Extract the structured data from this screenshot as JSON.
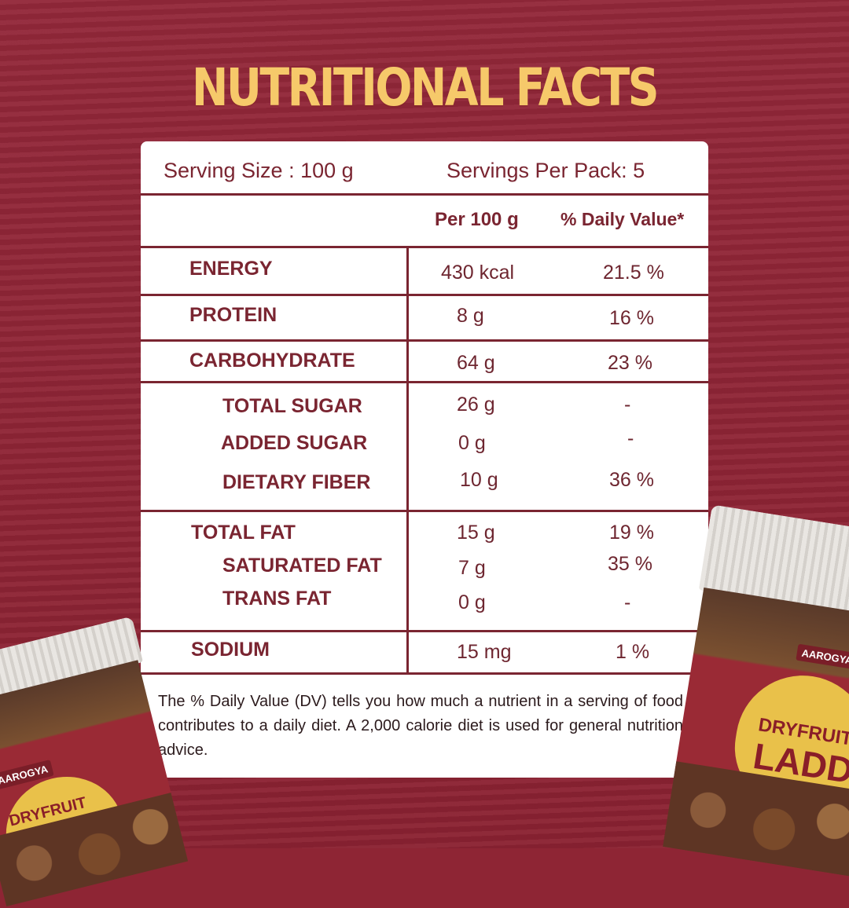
{
  "title": "NUTRITIONAL FACTS",
  "serving": {
    "size": "Serving Size : 100 g",
    "per_pack": "Servings Per Pack: 5"
  },
  "columns": {
    "per": "Per 100 g",
    "dv": "% Daily Value*"
  },
  "rows": [
    {
      "name": "ENERGY",
      "value": "430 kcal",
      "dv": "21.5 %"
    },
    {
      "name": "PROTEIN",
      "value": "8 g",
      "dv": "16 %"
    },
    {
      "name": "CARBOHYDRATE",
      "value": "64 g",
      "dv": "23 %"
    },
    {
      "name": "TOTAL SUGAR",
      "value": "26 g",
      "dv": "-"
    },
    {
      "name": "ADDED SUGAR",
      "value": "0 g",
      "dv": "-"
    },
    {
      "name": "DIETARY FIBER",
      "value": "10 g",
      "dv": "36 %"
    },
    {
      "name": "TOTAL FAT",
      "value": "15 g",
      "dv": "19 %"
    },
    {
      "name": "SATURATED FAT",
      "value": "7 g",
      "dv": "35 %"
    },
    {
      "name": "TRANS FAT",
      "value": "0 g",
      "dv": "-"
    },
    {
      "name": "SODIUM",
      "value": "15 mg",
      "dv": "1 %"
    }
  ],
  "footnote": "The % Daily Value (DV) tells you how much a nutrient in a serving of food contributes to a daily diet. A 2,000 calorie diet is used for general nutrition advice.",
  "product": {
    "brand": "AAROGYA",
    "name_line1": "DRYFRUIT",
    "name_line2": "LADDU"
  },
  "colors": {
    "background": "#8e2534",
    "title": "#f6c96a",
    "text": "#7a2531"
  }
}
